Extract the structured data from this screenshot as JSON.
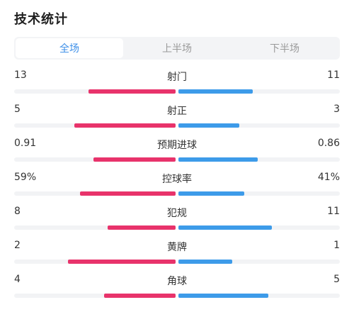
{
  "title": "技术统计",
  "tabs": [
    {
      "label": "全场",
      "active": true
    },
    {
      "label": "上半场",
      "active": false
    },
    {
      "label": "下半场",
      "active": false
    }
  ],
  "colors": {
    "home": "#e8336b",
    "away": "#3d9be9",
    "track": "#f2f3f5",
    "tab_active": "#3d8fe8"
  },
  "stats": [
    {
      "label": "射门",
      "home": "13",
      "away": "11",
      "home_share": 0.54,
      "away_share": 0.46
    },
    {
      "label": "射正",
      "home": "5",
      "away": "3",
      "home_share": 0.625,
      "away_share": 0.375
    },
    {
      "label": "预期进球",
      "home": "0.91",
      "away": "0.86",
      "home_share": 0.51,
      "away_share": 0.49
    },
    {
      "label": "控球率",
      "home": "59%",
      "away": "41%",
      "home_share": 0.59,
      "away_share": 0.41
    },
    {
      "label": "犯规",
      "home": "8",
      "away": "11",
      "home_share": 0.42,
      "away_share": 0.58
    },
    {
      "label": "黄牌",
      "home": "2",
      "away": "1",
      "home_share": 0.667,
      "away_share": 0.333
    },
    {
      "label": "角球",
      "home": "4",
      "away": "5",
      "home_share": 0.444,
      "away_share": 0.556
    }
  ]
}
